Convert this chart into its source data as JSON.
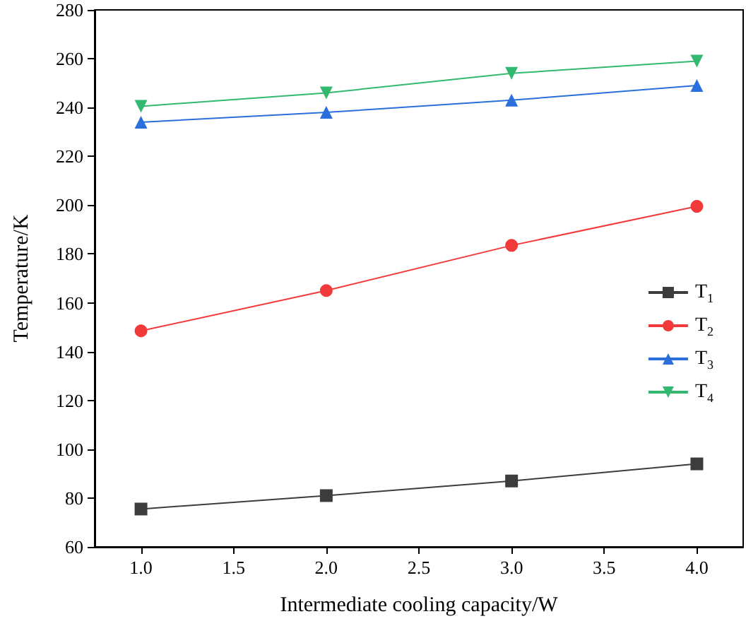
{
  "chart_data": {
    "type": "line",
    "xlabel": "Intermediate cooling capacity/W",
    "ylabel": "Temperature/K",
    "x": [
      1.0,
      2.0,
      3.0,
      4.0
    ],
    "series": [
      {
        "name": "T$_{1}$",
        "color": "#3c3c3c",
        "marker": "square",
        "values": [
          75.5,
          81,
          87,
          94
        ]
      },
      {
        "name": "T$_{2}$",
        "color": "#f33a3a",
        "marker": "circle",
        "values": [
          148.5,
          165,
          183.5,
          199.5
        ]
      },
      {
        "name": "T$_{3}$",
        "color": "#2a6fdc",
        "marker": "triangle",
        "values": [
          234,
          238,
          243,
          249
        ]
      },
      {
        "name": "T$_{4}$",
        "color": "#33b870",
        "marker": "triangle-down",
        "values": [
          240.5,
          246,
          254,
          259
        ]
      }
    ],
    "xlim": [
      0.75,
      4.25
    ],
    "xticks": [
      {
        "value": 1.0,
        "label": "1.0"
      },
      {
        "value": 1.5,
        "label": "1.5"
      },
      {
        "value": 2.0,
        "label": "2.0"
      },
      {
        "value": 2.5,
        "label": "2.5"
      },
      {
        "value": 3.0,
        "label": "3.0"
      },
      {
        "value": 3.5,
        "label": "3.5"
      },
      {
        "value": 4.0,
        "label": "4.0"
      }
    ],
    "ylim": [
      60,
      280
    ],
    "yticks": [
      60,
      80,
      100,
      120,
      140,
      160,
      180,
      200,
      220,
      240,
      260,
      280
    ],
    "grid": false,
    "legend": "right",
    "line_style": "solid"
  }
}
